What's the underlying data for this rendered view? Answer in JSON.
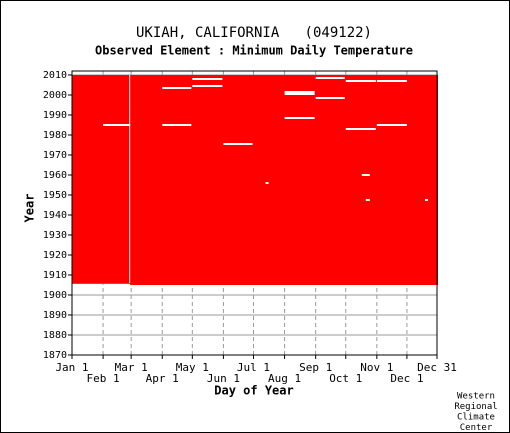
{
  "chart_data": {
    "type": "availability",
    "title": "UKIAH, CALIFORNIA   (049122)",
    "subtitle": "Observed Element : Minimum Daily Temperature",
    "xlabel": "Day of Year",
    "ylabel": "Year",
    "credit": [
      "Western",
      "Regional",
      "Climate",
      "Center"
    ],
    "xlim": [
      1,
      365
    ],
    "xticks": [
      {
        "value": 1,
        "label": "Jan 1"
      },
      {
        "value": 32,
        "label": "Feb 1"
      },
      {
        "value": 60,
        "label": "Mar 1"
      },
      {
        "value": 91,
        "label": "Apr 1"
      },
      {
        "value": 121,
        "label": "May 1"
      },
      {
        "value": 152,
        "label": "Jun 1"
      },
      {
        "value": 182,
        "label": "Jul 1"
      },
      {
        "value": 213,
        "label": "Aug 1"
      },
      {
        "value": 244,
        "label": "Sep 1"
      },
      {
        "value": 274,
        "label": "Oct 1"
      },
      {
        "value": 305,
        "label": "Nov 1"
      },
      {
        "value": 335,
        "label": "Dec 1"
      },
      {
        "value": 365,
        "label": "Dec 31"
      }
    ],
    "ylim": [
      1870,
      2012
    ],
    "yticks": [
      1870,
      1880,
      1890,
      1900,
      1910,
      1920,
      1930,
      1940,
      1950,
      1960,
      1970,
      1980,
      1990,
      2000,
      2010
    ],
    "grid": true,
    "color": "#ff0000",
    "records": [
      {
        "day": [
          1,
          59
        ],
        "year": [
          1905.6,
          2010
        ]
      },
      {
        "day": [
          59,
          365
        ],
        "year": [
          1905,
          2010
        ]
      }
    ],
    "gaps": [
      {
        "day": [
          58,
          59
        ],
        "year": [
          1906,
          2010
        ]
      },
      {
        "day": [
          32,
          59
        ],
        "year": [
          1984.5,
          1985.5
        ]
      },
      {
        "day": [
          91,
          120
        ],
        "year": [
          1984.5,
          1985.5
        ]
      },
      {
        "day": [
          305,
          335
        ],
        "year": [
          1984.5,
          1985.5
        ]
      },
      {
        "day": [
          274,
          304
        ],
        "year": [
          1982.5,
          1983.5
        ]
      },
      {
        "day": [
          152,
          181
        ],
        "year": [
          1975,
          1976
        ]
      },
      {
        "day": [
          213,
          243
        ],
        "year": [
          1988,
          1989
        ]
      },
      {
        "day": [
          213,
          243
        ],
        "year": [
          2000,
          2002
        ]
      },
      {
        "day": [
          244,
          273
        ],
        "year": [
          1998,
          1999
        ]
      },
      {
        "day": [
          91,
          120
        ],
        "year": [
          2003,
          2004
        ]
      },
      {
        "day": [
          121,
          151
        ],
        "year": [
          2004,
          2005
        ]
      },
      {
        "day": [
          274,
          304
        ],
        "year": [
          2006.5,
          2007.5
        ]
      },
      {
        "day": [
          305,
          335
        ],
        "year": [
          2006.5,
          2007.5
        ]
      },
      {
        "day": [
          121,
          151
        ],
        "year": [
          2007.5,
          2008.5
        ]
      },
      {
        "day": [
          244,
          273
        ],
        "year": [
          2008,
          2009
        ]
      },
      {
        "day": [
          290,
          298
        ],
        "year": [
          1959.5,
          1960.5
        ]
      },
      {
        "day": [
          294,
          298
        ],
        "year": [
          1947,
          1948
        ]
      },
      {
        "day": [
          353,
          356
        ],
        "year": [
          1947,
          1948
        ]
      },
      {
        "day": [
          194,
          197
        ],
        "year": [
          1955.5,
          1956.5
        ]
      }
    ]
  }
}
